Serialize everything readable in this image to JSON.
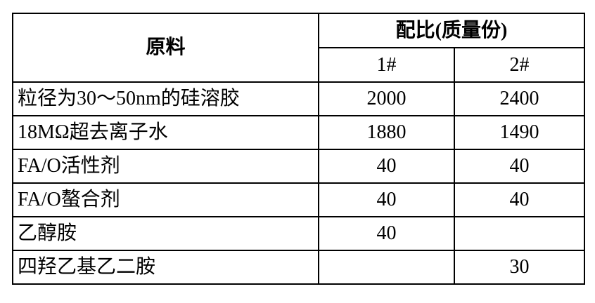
{
  "table": {
    "header": {
      "material": "原料",
      "ratio": "配比(质量份)",
      "cols": [
        "1#",
        "2#"
      ]
    },
    "rows": [
      {
        "material": "粒径为30～50nm的硅溶胶",
        "v1": "2000",
        "v2": "2400"
      },
      {
        "material": "18MΩ超去离子水",
        "v1": "1880",
        "v2": "1490"
      },
      {
        "material": "FA/O活性剂",
        "v1": "40",
        "v2": "40"
      },
      {
        "material": "FA/O螯合剂",
        "v1": "40",
        "v2": "40"
      },
      {
        "material": "乙醇胺",
        "v1": "40",
        "v2": ""
      },
      {
        "material": "四羟乙基乙二胺",
        "v1": "",
        "v2": "30"
      }
    ]
  }
}
